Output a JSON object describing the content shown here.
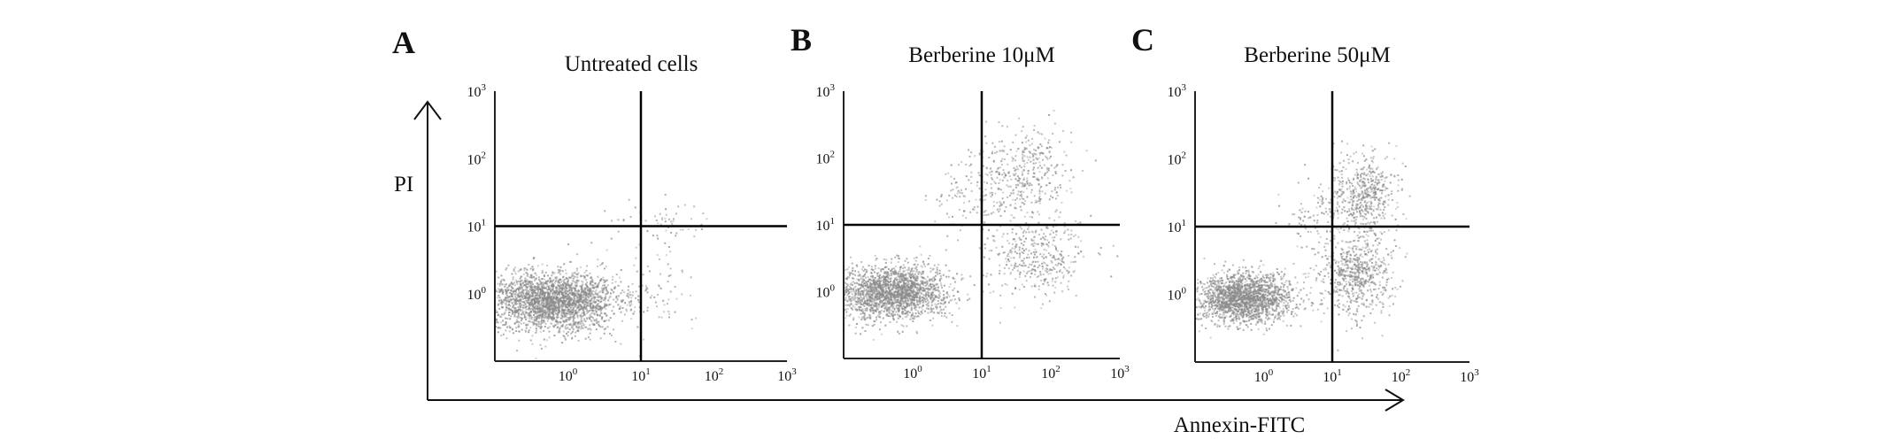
{
  "figure": {
    "y_axis_label": "PI",
    "x_axis_label": "Annexin-FITC"
  },
  "chart_data": [
    {
      "type": "scatter",
      "panel_label": "A",
      "title": "Untreated cells",
      "x_scale": "log",
      "y_scale": "log",
      "xlim": [
        0.1,
        1000
      ],
      "ylim": [
        0.1,
        1000
      ],
      "x_ticks": [
        "10",
        "10",
        "10",
        "10"
      ],
      "x_tick_exponents": [
        "0",
        "1",
        "2",
        "3"
      ],
      "y_ticks": [
        "10",
        "10",
        "10",
        "10"
      ],
      "y_tick_exponents": [
        "0",
        "1",
        "2",
        "3"
      ],
      "quadrant_gate": {
        "x": 10,
        "y": 10
      },
      "point_color": "#8a8a8a",
      "populations": [
        {
          "quadrant": "lower-left",
          "center": [
            0.6,
            0.8
          ],
          "spread_decades": [
            0.45,
            0.22
          ],
          "count": 2600
        },
        {
          "quadrant": "lower-right",
          "center": [
            18,
            1.0
          ],
          "spread_decades": [
            0.25,
            0.3
          ],
          "count": 60
        },
        {
          "quadrant": "upper-right",
          "center": [
            25,
            12
          ],
          "spread_decades": [
            0.25,
            0.15
          ],
          "count": 45
        },
        {
          "quadrant": "upper-left",
          "center": [
            5,
            12
          ],
          "spread_decades": [
            0.2,
            0.12
          ],
          "count": 12
        }
      ]
    },
    {
      "type": "scatter",
      "panel_label": "B",
      "title": "Berberine 10μM",
      "x_scale": "log",
      "y_scale": "log",
      "xlim": [
        0.1,
        1000
      ],
      "ylim": [
        0.1,
        1000
      ],
      "x_ticks": [
        "10",
        "10",
        "10",
        "10"
      ],
      "x_tick_exponents": [
        "0",
        "1",
        "2",
        "3"
      ],
      "y_ticks": [
        "10",
        "10",
        "10",
        "10"
      ],
      "y_tick_exponents": [
        "0",
        "1",
        "2",
        "3"
      ],
      "quadrant_gate": {
        "x": 10,
        "y": 10
      },
      "point_color": "#8a8a8a",
      "populations": [
        {
          "quadrant": "lower-left",
          "center": [
            0.5,
            1.0
          ],
          "spread_decades": [
            0.4,
            0.2
          ],
          "count": 2000
        },
        {
          "quadrant": "lower-right",
          "center": [
            60,
            3.5
          ],
          "spread_decades": [
            0.35,
            0.3
          ],
          "count": 380
        },
        {
          "quadrant": "upper-right",
          "center": [
            40,
            55
          ],
          "spread_decades": [
            0.35,
            0.35
          ],
          "count": 420
        },
        {
          "quadrant": "upper-left",
          "center": [
            6,
            25
          ],
          "spread_decades": [
            0.25,
            0.3
          ],
          "count": 90
        }
      ]
    },
    {
      "type": "scatter",
      "panel_label": "C",
      "title": "Berberine 50μM",
      "x_scale": "log",
      "y_scale": "log",
      "xlim": [
        0.1,
        1000
      ],
      "ylim": [
        0.1,
        1000
      ],
      "x_ticks": [
        "10",
        "10",
        "10",
        "10"
      ],
      "x_tick_exponents": [
        "0",
        "1",
        "2",
        "3"
      ],
      "y_ticks": [
        "10",
        "10",
        "10",
        "10"
      ],
      "y_tick_exponents": [
        "0",
        "1",
        "2",
        "3"
      ],
      "quadrant_gate": {
        "x": 10,
        "y": 10
      },
      "point_color": "#8a8a8a",
      "populations": [
        {
          "quadrant": "lower-left",
          "center": [
            0.5,
            0.9
          ],
          "spread_decades": [
            0.35,
            0.18
          ],
          "count": 1900
        },
        {
          "quadrant": "lower-right",
          "center": [
            22,
            2.0
          ],
          "spread_decades": [
            0.25,
            0.3
          ],
          "count": 650
        },
        {
          "quadrant": "upper-right",
          "center": [
            28,
            30
          ],
          "spread_decades": [
            0.25,
            0.3
          ],
          "count": 520
        },
        {
          "quadrant": "upper-left",
          "center": [
            5,
            15
          ],
          "spread_decades": [
            0.2,
            0.25
          ],
          "count": 80
        }
      ]
    }
  ]
}
